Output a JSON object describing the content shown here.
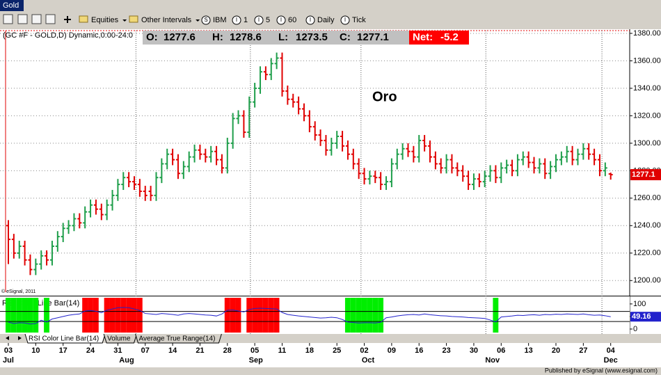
{
  "window_title": "Gold",
  "toolbar": {
    "menus": [
      "Equities",
      "Other Intervals"
    ],
    "buttons": [
      {
        "icon": "S",
        "label": "IBM"
      },
      {
        "icon": "I",
        "label": "1"
      },
      {
        "icon": "I",
        "label": "5"
      },
      {
        "icon": "I",
        "label": "60"
      },
      {
        "icon": "I",
        "label": "Daily"
      },
      {
        "icon": "I",
        "label": "Tick"
      }
    ]
  },
  "chart_data": {
    "type": "ohlc",
    "title": "(GC #F - GOLD,D) Dynamic,0:00-24:0",
    "annotation": "Oro",
    "copyright": "© eSignal, 2011",
    "quote_labels": [
      "O:",
      "H:",
      "L:",
      "C:"
    ],
    "net_label": "Net:",
    "net": -5.2,
    "up_color": "#1e9e4a",
    "down_color": "#e00000",
    "categories": [
      "03",
      null,
      null,
      null,
      null,
      "10",
      null,
      null,
      null,
      null,
      "17",
      null,
      null,
      null,
      null,
      "24",
      null,
      null,
      null,
      null,
      "31",
      null,
      null,
      null,
      null,
      "07",
      null,
      null,
      null,
      null,
      "14",
      null,
      null,
      null,
      null,
      "21",
      null,
      null,
      null,
      null,
      "28",
      null,
      null,
      null,
      null,
      "05",
      null,
      null,
      null,
      null,
      "11",
      null,
      null,
      null,
      null,
      "18",
      null,
      null,
      null,
      null,
      "25",
      null,
      null,
      null,
      null,
      "02",
      null,
      null,
      null,
      null,
      "09",
      null,
      null,
      null,
      null,
      "16",
      null,
      null,
      null,
      null,
      "23",
      null,
      null,
      null,
      null,
      "30",
      null,
      null,
      null,
      null,
      "06",
      null,
      null,
      null,
      null,
      "13",
      null,
      null,
      null,
      null,
      "20",
      null,
      null,
      null,
      null,
      "27",
      null,
      null,
      null,
      null,
      "04"
    ],
    "month_labels": [
      "Jul",
      "Aug",
      "Sep",
      "Oct",
      "Nov",
      "Dec"
    ],
    "open": [
      1240,
      1230,
      1220,
      1225,
      1215,
      1208,
      1212,
      1218,
      1215,
      1225,
      1232,
      1238,
      1240,
      1245,
      1242,
      1250,
      1255,
      1252,
      1248,
      1255,
      1262,
      1270,
      1275,
      1272,
      1270,
      1265,
      1265,
      1262,
      1275,
      1285,
      1292,
      1288,
      1278,
      1283,
      1290,
      1295,
      1292,
      1290,
      1294,
      1288,
      1282,
      1300,
      1318,
      1320,
      1308,
      1330,
      1340,
      1352,
      1350,
      1358,
      1362,
      1338,
      1332,
      1330,
      1325,
      1320,
      1312,
      1306,
      1302,
      1295,
      1300,
      1305,
      1298,
      1292,
      1285,
      1278,
      1274,
      1276,
      1275,
      1270,
      1272,
      1285,
      1292,
      1296,
      1294,
      1290,
      1302,
      1298,
      1290,
      1285,
      1282,
      1288,
      1282,
      1280,
      1276,
      1270,
      1274,
      1272,
      1276,
      1280,
      1275,
      1282,
      1284,
      1280,
      1288,
      1290,
      1286,
      1282,
      1285,
      1278,
      1283,
      1288,
      1290,
      1294,
      1288,
      1292,
      1296,
      1292,
      1288,
      1280,
      1277.6
    ],
    "high": [
      1244,
      1234,
      1229,
      1229,
      1219,
      1216,
      1222,
      1222,
      1229,
      1236,
      1242,
      1244,
      1249,
      1249,
      1254,
      1259,
      1259,
      1256,
      1259,
      1266,
      1274,
      1279,
      1279,
      1276,
      1274,
      1269,
      1269,
      1279,
      1289,
      1296,
      1296,
      1292,
      1287,
      1294,
      1299,
      1299,
      1296,
      1298,
      1298,
      1292,
      1304,
      1322,
      1324,
      1324,
      1334,
      1344,
      1356,
      1356,
      1362,
      1366,
      1366,
      1342,
      1336,
      1334,
      1329,
      1324,
      1316,
      1310,
      1306,
      1304,
      1309,
      1309,
      1302,
      1296,
      1289,
      1282,
      1280,
      1280,
      1279,
      1276,
      1289,
      1296,
      1300,
      1300,
      1298,
      1306,
      1306,
      1302,
      1294,
      1289,
      1292,
      1292,
      1286,
      1284,
      1280,
      1278,
      1278,
      1280,
      1284,
      1284,
      1286,
      1288,
      1288,
      1292,
      1294,
      1294,
      1290,
      1289,
      1289,
      1287,
      1292,
      1294,
      1298,
      1298,
      1296,
      1300,
      1300,
      1296,
      1292,
      1286,
      1278.6
    ],
    "low": [
      1212,
      1216,
      1216,
      1211,
      1204,
      1204,
      1208,
      1211,
      1211,
      1221,
      1228,
      1234,
      1236,
      1238,
      1238,
      1246,
      1248,
      1244,
      1244,
      1251,
      1258,
      1266,
      1268,
      1266,
      1261,
      1258,
      1258,
      1258,
      1271,
      1281,
      1284,
      1274,
      1274,
      1279,
      1286,
      1288,
      1286,
      1286,
      1284,
      1278,
      1278,
      1296,
      1314,
      1304,
      1304,
      1326,
      1336,
      1346,
      1346,
      1354,
      1334,
      1328,
      1326,
      1321,
      1316,
      1308,
      1302,
      1298,
      1291,
      1291,
      1296,
      1294,
      1288,
      1281,
      1274,
      1270,
      1270,
      1271,
      1266,
      1266,
      1268,
      1281,
      1288,
      1290,
      1286,
      1286,
      1294,
      1286,
      1281,
      1278,
      1278,
      1278,
      1276,
      1272,
      1266,
      1266,
      1268,
      1268,
      1272,
      1271,
      1271,
      1278,
      1276,
      1276,
      1284,
      1282,
      1278,
      1278,
      1274,
      1274,
      1279,
      1284,
      1286,
      1284,
      1284,
      1288,
      1288,
      1284,
      1276,
      1276,
      1273.5
    ],
    "close": [
      1230,
      1220,
      1225,
      1215,
      1208,
      1212,
      1218,
      1215,
      1225,
      1232,
      1238,
      1240,
      1245,
      1242,
      1250,
      1255,
      1252,
      1248,
      1255,
      1262,
      1270,
      1275,
      1272,
      1270,
      1265,
      1262,
      1262,
      1275,
      1285,
      1292,
      1288,
      1278,
      1283,
      1290,
      1295,
      1292,
      1290,
      1294,
      1288,
      1282,
      1300,
      1318,
      1320,
      1308,
      1330,
      1340,
      1352,
      1350,
      1358,
      1362,
      1338,
      1332,
      1330,
      1325,
      1320,
      1312,
      1306,
      1302,
      1295,
      1300,
      1305,
      1298,
      1292,
      1285,
      1278,
      1274,
      1276,
      1275,
      1270,
      1272,
      1285,
      1292,
      1296,
      1294,
      1290,
      1302,
      1298,
      1290,
      1285,
      1282,
      1288,
      1282,
      1280,
      1276,
      1270,
      1274,
      1272,
      1276,
      1280,
      1275,
      1282,
      1284,
      1280,
      1288,
      1290,
      1286,
      1282,
      1285,
      1278,
      1283,
      1288,
      1290,
      1294,
      1288,
      1292,
      1296,
      1292,
      1288,
      1280,
      1282,
      1277.1
    ],
    "ylim": [
      1190,
      1382
    ],
    "yticks": [
      {
        "value": 1200,
        "label": "1200.00"
      },
      {
        "value": 1220,
        "label": "1220.00"
      },
      {
        "value": 1240,
        "label": "1240.00"
      },
      {
        "value": 1260,
        "label": "1260.00"
      },
      {
        "value": 1280,
        "label": "1280.00"
      },
      {
        "value": 1300,
        "label": "1300.00"
      },
      {
        "value": 1320,
        "label": "1320.00"
      },
      {
        "value": 1340,
        "label": "1340.00"
      },
      {
        "value": 1360,
        "label": "1360.00"
      },
      {
        "value": 1380,
        "label": "1380.00"
      }
    ],
    "grid": true,
    "indicator": {
      "name": "RSI Color Line Bar(14)",
      "color": "#2222cc",
      "upper": 70,
      "lower": 30,
      "upper_color": "#ff0000",
      "lower_color": "#00ee00",
      "ylim": [
        -14,
        119
      ],
      "yticks": [
        0,
        50,
        100
      ],
      "values": [
        28,
        22,
        25,
        24,
        20,
        22,
        35,
        28,
        40,
        45,
        50,
        55,
        58,
        60,
        72,
        74,
        71,
        65,
        75,
        80,
        85,
        86,
        85,
        80,
        74,
        62,
        60,
        58,
        62,
        60,
        58,
        55,
        60,
        62,
        60,
        58,
        56,
        55,
        52,
        60,
        75,
        76,
        72,
        68,
        78,
        82,
        83,
        82,
        81,
        80,
        66,
        58,
        55,
        52,
        50,
        48,
        46,
        44,
        45,
        47,
        45,
        38,
        28,
        26,
        24,
        25,
        25,
        24,
        27,
        45,
        48,
        52,
        55,
        57,
        58,
        56,
        60,
        57,
        55,
        53,
        52,
        50,
        49,
        48,
        46,
        45,
        44,
        42,
        36,
        28,
        48,
        50,
        52,
        55,
        54,
        56,
        57,
        55,
        58,
        57,
        59,
        58,
        60,
        59,
        58,
        60,
        57,
        55,
        56,
        53,
        49.16
      ]
    }
  },
  "tabs": [
    "RSI Color Line Bar(14)",
    "Volume",
    "Average True Range(14)"
  ],
  "footer": "Published by eSignal (www.esignal.com)"
}
